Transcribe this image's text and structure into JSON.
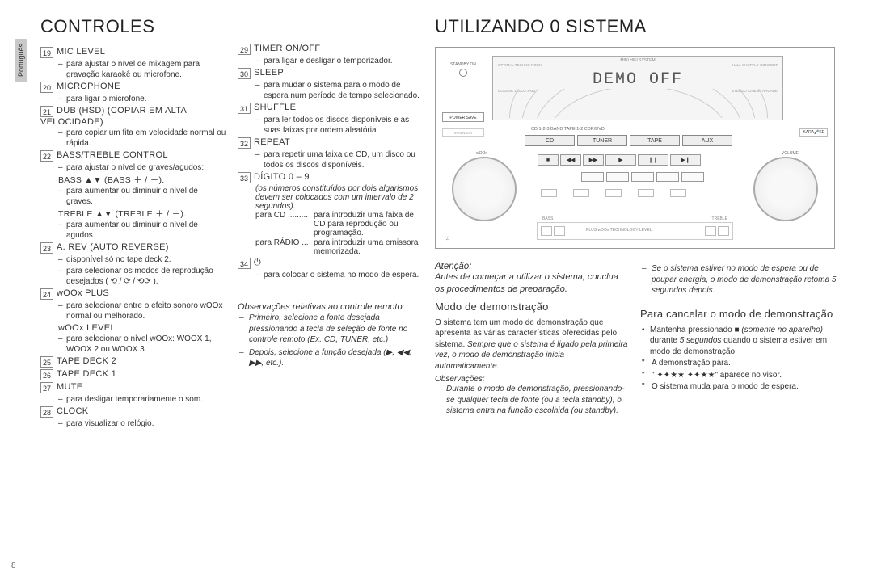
{
  "page_number": "8",
  "language_tab": "Português",
  "left_title": "CONTROLES",
  "right_title": "UTILIZANDO 0 SISTEMA",
  "items_col1": [
    {
      "num": "19",
      "title": "MIC LEVEL",
      "lines": [
        "para ajustar o nível de mixagem para gravação karaokê ou microfone."
      ]
    },
    {
      "num": "20",
      "title": "MICROPHONE",
      "lines": [
        "para ligar o microfone."
      ]
    },
    {
      "num": "21",
      "title": "DUB (HSD) (COPIAR EM ALTA VELOCIDADE)",
      "lines": [
        "para copiar um fita em velocidade normal ou rápida."
      ]
    },
    {
      "num": "22",
      "title": "BASS/TREBLE CONTROL",
      "lines": [
        "para ajustar o nível de graves/agudos:"
      ],
      "bold1": "BASS ▲▼ (BASS ＋ / －).",
      "lines2": [
        "para aumentar ou diminuir o nível de graves."
      ],
      "bold2": "TREBLE ▲▼ (TREBLE ＋ / －).",
      "lines3": [
        "para aumentar ou diminuir o nível de agudos."
      ]
    },
    {
      "num": "23",
      "title": "A. REV (AUTO REVERSE)",
      "lines": [
        "disponível só no tape deck 2.",
        "para selecionar os modos de reprodução desejados ( ⟲ / ⟳ / ⟲⟳ )."
      ]
    },
    {
      "num": "24",
      "title": "wOOx PLUS",
      "lines": [
        "para selecionar entre o efeito sonoro wOOx normal ou melhorado."
      ],
      "sub_title": "wOOx LEVEL",
      "sub_lines": [
        "para selecionar o nível wOOx: WOOX 1, WOOX 2 ou WOOX 3."
      ]
    },
    {
      "num": "25",
      "title": "TAPE DECK 2"
    },
    {
      "num": "26",
      "title": "TAPE DECK 1"
    },
    {
      "num": "27",
      "title": "MUTE",
      "lines": [
        "para desligar temporariamente o som."
      ]
    },
    {
      "num": "28",
      "title": "CLOCK",
      "lines": [
        "para visualizar o relógio."
      ]
    }
  ],
  "items_col2": [
    {
      "num": "29",
      "title": "TIMER ON/OFF",
      "lines": [
        "para ligar e desligar o temporizador."
      ]
    },
    {
      "num": "30",
      "title": "SLEEP",
      "lines": [
        "para mudar o sistema para o modo de espera num período de tempo selecionado."
      ]
    },
    {
      "num": "31",
      "title": "SHUFFLE",
      "lines": [
        "para ler todos os discos disponíveis e as suas faixas por ordem aleatória."
      ]
    },
    {
      "num": "32",
      "title": "REPEAT",
      "lines": [
        "para repetir uma faixa de CD, um disco ou todos os discos disponíveis."
      ]
    },
    {
      "num": "33",
      "title": "DÍGITO 0 – 9",
      "italic_note": "(os números constituídos por dois algarismos devem ser colocados com um intervalo de 2 segundos).",
      "dot_rows": [
        {
          "l": "para CD .........",
          "r": "para introduzir uma faixa de CD para reprodução ou programação."
        },
        {
          "l": "para RÁDIO ...",
          "r": "para introduzir uma emissora memorizada."
        }
      ]
    },
    {
      "num": "34",
      "title": "⏻",
      "lines": [
        "para colocar o sistema no modo de espera."
      ]
    }
  ],
  "remote_heading": "Observações relativas ao controle remoto:",
  "remote_notes": [
    "Primeiro, selecione a fonte desejada pressionando a tecla de seleção de fonte no controle remoto (Ex. CD, TUNER, etc.)",
    "Depois, selecione a função desejada (▶, ◀◀, ▶▶, etc.)."
  ],
  "device": {
    "top_label": "MINI HIFI SYSTEM",
    "display_text": "DEMO OFF",
    "display_labels_left": "OPTIMAL  TECHNO  ROCK",
    "display_labels_right": "HALL  SHUFFLE  CONCERT",
    "display_labels2_left": "CLASSIC  DISCO  JAZZ",
    "display_labels2_right": "STEREO  CINEMA  ARCADE",
    "standby": "STANDBY ON",
    "power_save": "POWER SAVE",
    "ir": "IR SENSOR",
    "src_top": "CD 1•2•3    BAND    TAPE 1•2    CDR/DVD",
    "src": [
      "CD",
      "TUNER",
      "TAPE",
      "AUX"
    ],
    "ctrl": [
      "■",
      "◀◀",
      "▶▶",
      "▶",
      "❙❙",
      "▶❙"
    ],
    "knob_left": "wOOx",
    "knob_right": "VOLUME",
    "bottom_left": "BASS",
    "bottom_mid": "PLUS  wOOx TECHNOLOGY  LEVEL",
    "bottom_right": "TREBLE",
    "karaoke": "KARA🎤KE"
  },
  "attention_h": "Atenção:",
  "attention_body": "Antes de começar a utilizar o sistema, conclua os procedimentos de preparação.",
  "demo_h": "Modo de demonstração",
  "demo_body1": "O sistema tem um modo de demonstração que apresenta as várias características oferecidas pelo sistema. ",
  "demo_body1_em": "Sempre que o sistema é ligado pela primeira vez, o modo de demonstração inicia automaticamente.",
  "obs_h": "Observações:",
  "obs_list": [
    "Durante o modo de demonstração, pressionando-se qualquer tecla de fonte (ou a tecla standby), o sistema entra na função escolhida (ou standby).",
    "Se o sistema estiver no modo de espera ou de poupar energia, o modo de demonstração retoma 5 segundos depois."
  ],
  "cancel_h": "Para cancelar o modo de demonstração",
  "cancel_b1a": "Mantenha pressionado ■ ",
  "cancel_b1_em": "(somente no aparelho)",
  "cancel_b1b": " durante ",
  "cancel_b1_em2": "5 segundos",
  "cancel_b1c": " quando o sistema estiver em modo de demonstração.",
  "cancel_q": [
    "A demonstração pára.",
    "\" ✦✦★★ ✦✦★★\" aparece no visor.",
    "O sistema muda para o modo de espera."
  ]
}
